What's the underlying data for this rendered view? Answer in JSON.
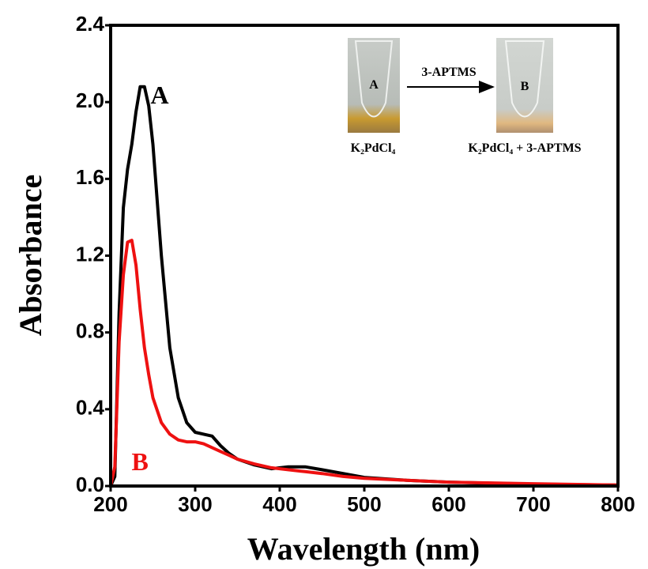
{
  "chart_data": {
    "type": "line",
    "x_label": "Wavelength (nm)",
    "y_label": "Absorbance",
    "x": [
      200,
      205,
      210,
      215,
      220,
      225,
      230,
      235,
      240,
      245,
      250,
      260,
      270,
      280,
      290,
      300,
      310,
      320,
      330,
      340,
      350,
      370,
      390,
      410,
      430,
      450,
      475,
      500,
      550,
      600,
      700,
      800
    ],
    "series": [
      {
        "name": "A",
        "color": "#000000",
        "values": [
          0,
          0.05,
          0.9,
          1.45,
          1.65,
          1.78,
          1.95,
          2.08,
          2.08,
          1.98,
          1.78,
          1.2,
          0.72,
          0.46,
          0.33,
          0.28,
          0.27,
          0.26,
          0.21,
          0.17,
          0.14,
          0.11,
          0.09,
          0.1,
          0.1,
          0.085,
          0.065,
          0.045,
          0.03,
          0.02,
          0.01,
          0.005
        ]
      },
      {
        "name": "B",
        "color": "#ee1111",
        "values": [
          0,
          0.1,
          0.75,
          1.1,
          1.27,
          1.28,
          1.15,
          0.92,
          0.72,
          0.58,
          0.46,
          0.33,
          0.27,
          0.24,
          0.23,
          0.23,
          0.22,
          0.2,
          0.18,
          0.16,
          0.14,
          0.115,
          0.095,
          0.085,
          0.075,
          0.065,
          0.05,
          0.04,
          0.03,
          0.02,
          0.012,
          0.005
        ]
      }
    ],
    "xlim": [
      200,
      800
    ],
    "ylim": [
      0,
      2.4
    ],
    "xticks": [
      200,
      300,
      400,
      500,
      600,
      700,
      800
    ],
    "yticks": [
      {
        "value": 0,
        "label": "0.0"
      },
      0.4,
      0.8,
      1.2,
      1.6,
      {
        "value": 2,
        "label": "2.0"
      },
      2.4
    ],
    "inset": {
      "tube_labels": [
        "A",
        "B"
      ],
      "arrow_label": "3-APTMS",
      "captions": [
        "K₂PdCl₄",
        "K₂PdCl₄ + 3-APTMS"
      ]
    }
  }
}
